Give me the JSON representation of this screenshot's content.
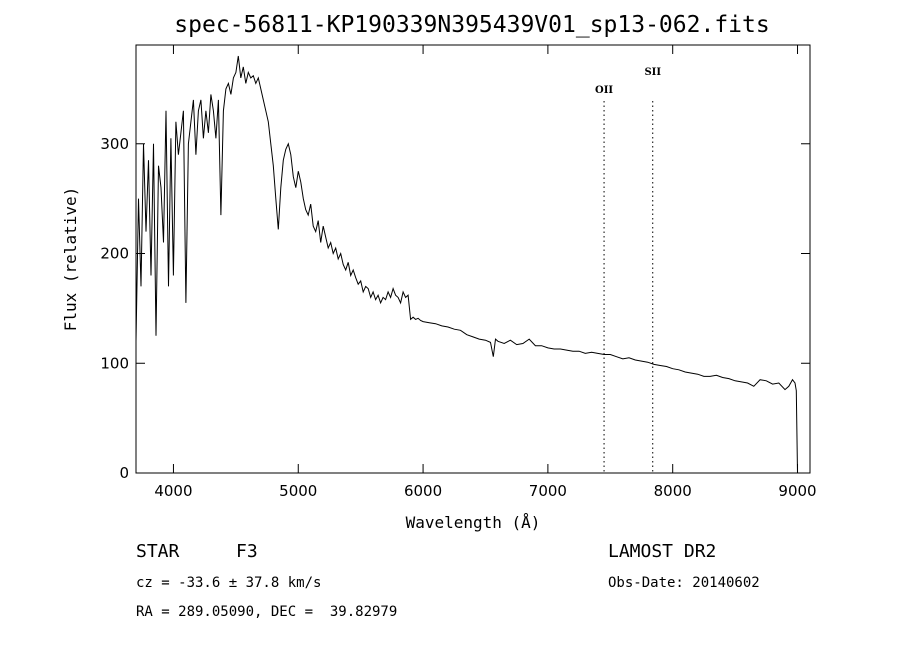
{
  "chart_data": {
    "type": "line",
    "title": "spec-56811-KP190339N395439V01_sp13-062.fits",
    "xlabel": "Wavelength (Å)",
    "ylabel": "Flux (relative)",
    "xlim": [
      3700,
      9100
    ],
    "ylim": [
      0,
      390
    ],
    "x_ticks": [
      4000,
      5000,
      6000,
      7000,
      8000,
      9000
    ],
    "y_ticks": [
      0,
      100,
      200,
      300
    ],
    "grid": false,
    "series": [
      {
        "x": [
          3700,
          3720,
          3740,
          3760,
          3780,
          3800,
          3820,
          3840,
          3860,
          3880,
          3900,
          3920,
          3940,
          3960,
          3980,
          4000,
          4020,
          4040,
          4060,
          4080,
          4100,
          4120,
          4140,
          4160,
          4180,
          4200,
          4220,
          4240,
          4260,
          4280,
          4300,
          4320,
          4340,
          4360,
          4380,
          4400,
          4420,
          4440,
          4460,
          4480,
          4500,
          4520,
          4540,
          4560,
          4580,
          4600,
          4620,
          4640,
          4660,
          4680,
          4700,
          4720,
          4740,
          4760,
          4780,
          4800,
          4820,
          4840,
          4860,
          4880,
          4900,
          4920,
          4940,
          4960,
          4980,
          5000,
          5020,
          5040,
          5060,
          5080,
          5100,
          5120,
          5140,
          5160,
          5180,
          5200,
          5220,
          5240,
          5260,
          5280,
          5300,
          5320,
          5340,
          5360,
          5380,
          5400,
          5420,
          5440,
          5460,
          5480,
          5500,
          5520,
          5540,
          5560,
          5580,
          5600,
          5620,
          5640,
          5660,
          5680,
          5700,
          5720,
          5740,
          5760,
          5780,
          5800,
          5820,
          5840,
          5860,
          5880,
          5900,
          5920,
          5940,
          5960,
          5980,
          6000,
          6050,
          6100,
          6150,
          6200,
          6250,
          6300,
          6350,
          6400,
          6450,
          6500,
          6540,
          6563,
          6580,
          6600,
          6650,
          6700,
          6750,
          6800,
          6850,
          6900,
          6950,
          7000,
          7050,
          7100,
          7150,
          7200,
          7250,
          7300,
          7350,
          7400,
          7450,
          7500,
          7550,
          7600,
          7650,
          7700,
          7750,
          7800,
          7850,
          7900,
          7950,
          8000,
          8050,
          8100,
          8150,
          8200,
          8250,
          8300,
          8350,
          8400,
          8450,
          8500,
          8550,
          8600,
          8650,
          8700,
          8750,
          8800,
          8850,
          8900,
          8930,
          8960,
          8980,
          8990,
          9000
        ],
        "y": [
          120,
          250,
          170,
          300,
          220,
          285,
          180,
          300,
          125,
          280,
          260,
          210,
          330,
          170,
          305,
          180,
          320,
          290,
          310,
          330,
          155,
          300,
          320,
          340,
          290,
          330,
          340,
          305,
          330,
          310,
          345,
          330,
          305,
          340,
          235,
          330,
          350,
          355,
          345,
          360,
          365,
          380,
          360,
          370,
          355,
          365,
          360,
          362,
          355,
          360,
          350,
          340,
          330,
          320,
          300,
          280,
          250,
          222,
          260,
          285,
          295,
          300,
          290,
          270,
          260,
          275,
          265,
          250,
          240,
          235,
          245,
          225,
          220,
          230,
          210,
          225,
          215,
          205,
          210,
          200,
          205,
          195,
          200,
          190,
          185,
          192,
          180,
          185,
          178,
          172,
          175,
          165,
          170,
          168,
          160,
          165,
          158,
          162,
          155,
          160,
          158,
          165,
          160,
          168,
          162,
          160,
          155,
          165,
          160,
          162,
          140,
          142,
          140,
          141,
          139,
          138,
          137,
          136,
          134,
          133,
          131,
          130,
          126,
          124,
          122,
          121,
          119,
          106,
          122,
          120,
          118,
          121,
          117,
          118,
          122,
          116,
          116,
          114,
          113,
          113,
          112,
          111,
          111,
          109,
          110,
          109,
          108,
          108,
          106,
          104,
          105,
          103,
          102,
          101,
          99,
          98,
          97,
          95,
          94,
          92,
          91,
          90,
          88,
          88,
          89,
          87,
          86,
          84,
          83,
          82,
          79,
          85,
          84,
          81,
          82,
          76,
          79,
          85,
          82,
          75,
          0
        ]
      }
    ],
    "annotations": [
      {
        "label": "OII",
        "x": 7450
      },
      {
        "label": "SII",
        "x": 7840
      }
    ]
  },
  "info": {
    "object_class": "STAR",
    "subclass": "F3",
    "survey": "LAMOST DR2",
    "redshift": "cz = -33.6 ± 37.8 km/s",
    "obs_date": "Obs-Date: 20140602",
    "coords": "RA = 289.05090, DEC =  39.82979"
  }
}
